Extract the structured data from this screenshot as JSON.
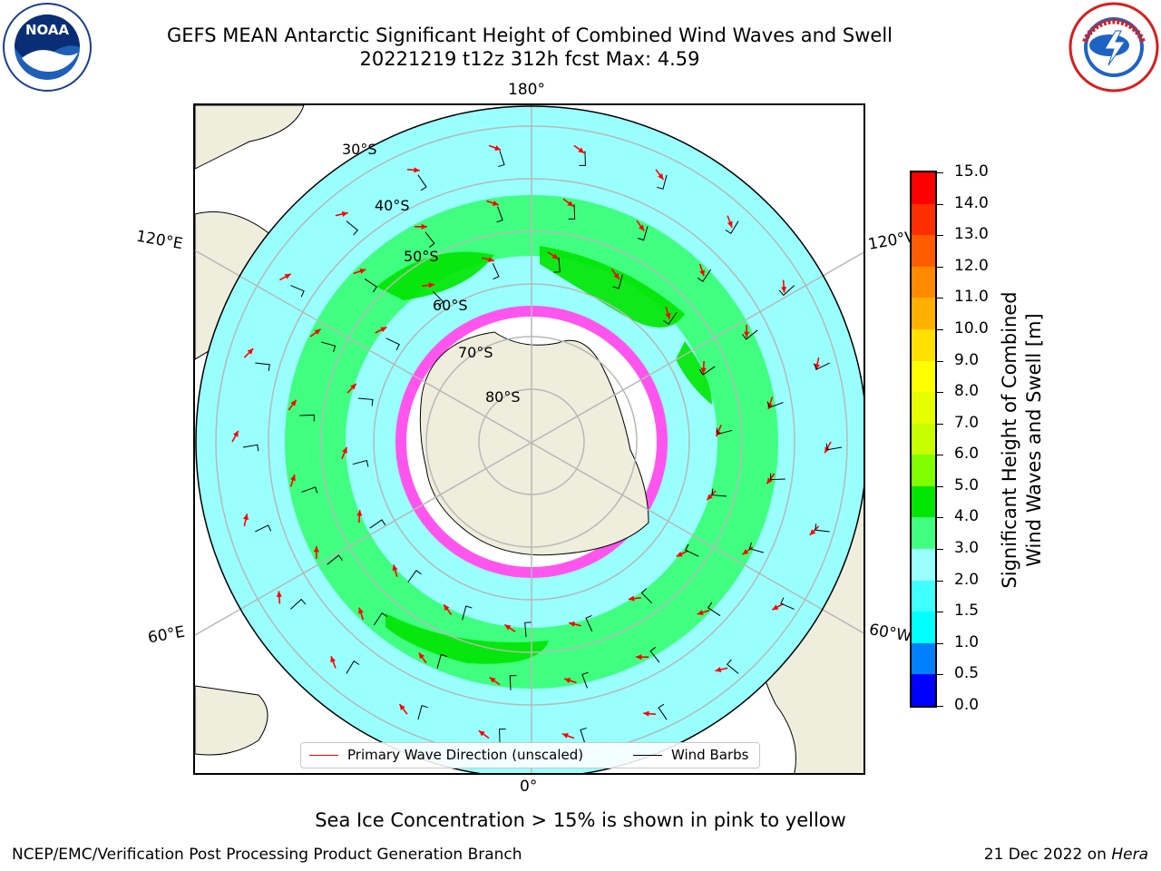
{
  "title": {
    "line1": "GEFS MEAN Antarctic Significant Height of Combined Wind Waves and Swell",
    "line2": "20221219 t12z 312h fcst   Max: 4.59"
  },
  "logos": {
    "left": {
      "text": "NOAA",
      "ring": "NATIONAL OCEANIC AND ATMOSPHERIC ADMINISTRATION · U.S. DEPARTMENT OF COMMERCE"
    },
    "right": {
      "ring": "NATIONAL WEATHER SERVICE"
    }
  },
  "map": {
    "lon_labels": {
      "top": "180°",
      "bottom": "0°",
      "upper_left": "120°E",
      "upper_right": "120°W",
      "lower_left": "60°E",
      "lower_right": "60°W"
    },
    "lat_labels": [
      "30°S",
      "40°S",
      "50°S",
      "60°S",
      "70°S",
      "80°S"
    ],
    "colors": {
      "land": "#efeddc",
      "ocean_low": "#99ffff",
      "ocean_mid": "#40ff80",
      "ocean_high": "#00e600",
      "sea_ice": "#ff55ee",
      "grid": "#b8b8b8",
      "wave_arrow": "#ff0000",
      "wind_barb": "#000000"
    }
  },
  "legend": {
    "wave_label": "Primary Wave Direction (unscaled)",
    "barb_label": "Wind Barbs",
    "wave_color": "#ff0000",
    "barb_color": "#000000"
  },
  "colorbar": {
    "label_line1": "Significant Height of Combined",
    "label_line2": "Wind Waves and Swell [m]",
    "ticks": [
      "15.0",
      "14.0",
      "13.0",
      "12.0",
      "11.0",
      "10.0",
      "9.0",
      "8.0",
      "7.0",
      "6.0",
      "5.0",
      "4.0",
      "3.0",
      "2.0",
      "1.5",
      "1.0",
      "0.5",
      "0.0"
    ],
    "colors": [
      "#ff0000",
      "#ff2e00",
      "#ff5c00",
      "#ff8a00",
      "#ffb000",
      "#ffe000",
      "#ffff00",
      "#e6ff00",
      "#c8ff00",
      "#80ff00",
      "#00e600",
      "#40ff80",
      "#99ffff",
      "#40ffff",
      "#00ffff",
      "#0080ff",
      "#0000ff"
    ]
  },
  "caption": "Sea Ice Concentration > 15% is shown in pink to yellow",
  "footer": {
    "left": "NCEP/EMC/Verification Post Processing Product Generation Branch",
    "right_prefix": "21 Dec 2022 on ",
    "right_host": "Hera"
  }
}
